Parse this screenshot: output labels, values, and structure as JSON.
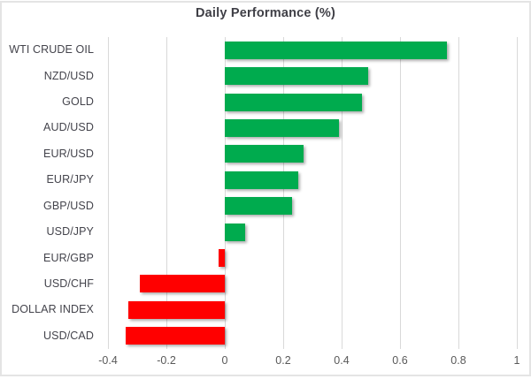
{
  "title": "Daily Performance (%)",
  "colors": {
    "positive": "#00ab4e",
    "negative": "#ff0000",
    "gridline": "#d9d9d9",
    "border": "#e4e4e4",
    "title_text": "#3f3f46",
    "category_text": "#44444c",
    "tick_text": "#595959"
  },
  "chart_data": {
    "type": "bar",
    "orientation": "horizontal",
    "title": "Daily Performance (%)",
    "categories": [
      "WTI CRUDE OIL",
      "NZD/USD",
      "GOLD",
      "AUD/USD",
      "EUR/USD",
      "EUR/JPY",
      "GBP/USD",
      "USD/JPY",
      "EUR/GBP",
      "USD/CHF",
      "DOLLAR INDEX",
      "USD/CAD"
    ],
    "values": [
      0.76,
      0.49,
      0.47,
      0.39,
      0.27,
      0.25,
      0.23,
      0.07,
      -0.02,
      -0.29,
      -0.33,
      -0.34
    ],
    "xlim": [
      -0.4,
      1.0
    ],
    "x_ticks": [
      -0.4,
      -0.2,
      0,
      0.2,
      0.4,
      0.6,
      0.8,
      1
    ],
    "x_tick_labels": [
      "-0.4",
      "-0.2",
      "0",
      "0.2",
      "0.4",
      "0.6",
      "0.8",
      "1"
    ],
    "xlabel": "",
    "ylabel": "",
    "grid": true,
    "legend": false,
    "positive_color": "#00ab4e",
    "negative_color": "#ff0000"
  }
}
